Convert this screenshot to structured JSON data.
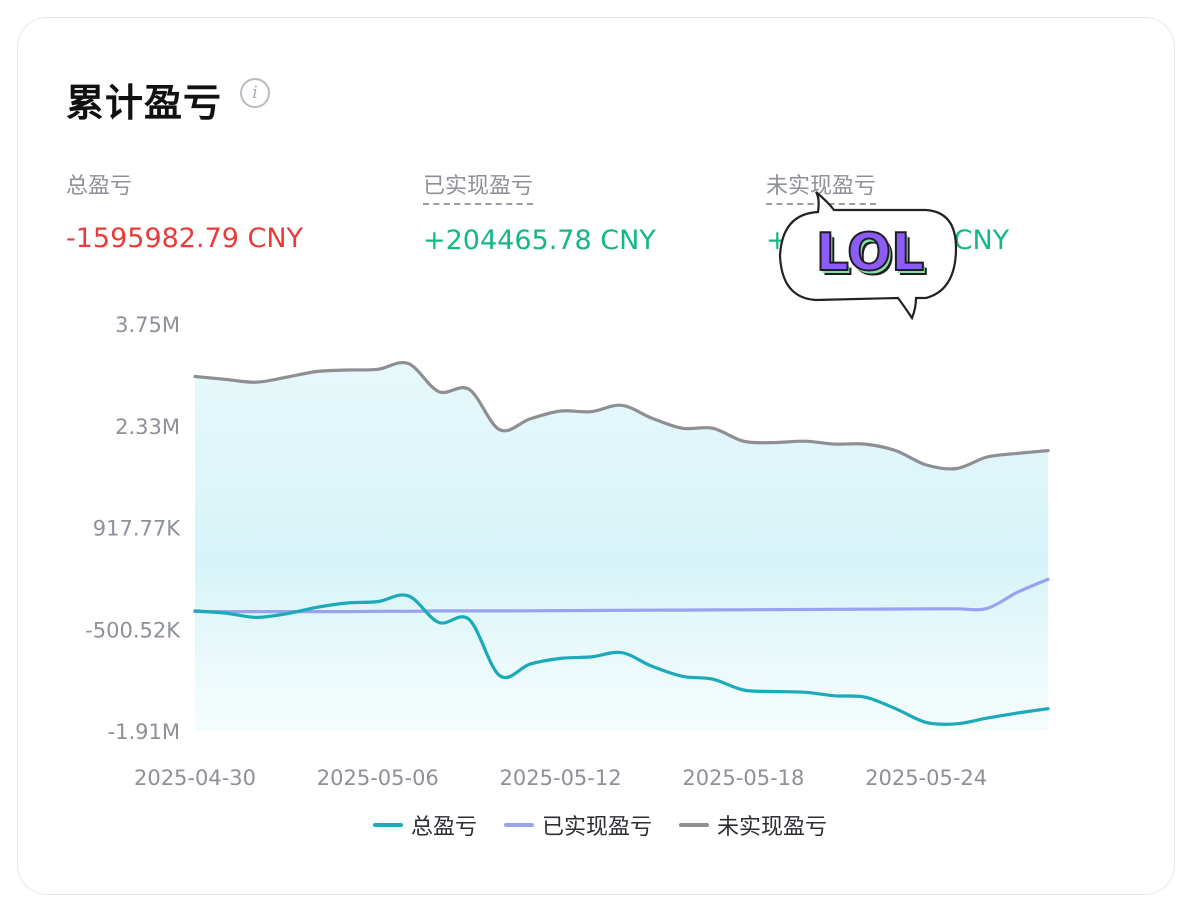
{
  "card": {
    "title": "累计盈亏",
    "info_icon": "info-icon"
  },
  "metrics": [
    {
      "label": "总盈亏",
      "value": "-1595982.79 CNY",
      "status": "negative"
    },
    {
      "label": "已实现盈亏",
      "value": "+204465.78 CNY",
      "status": "positive"
    },
    {
      "label": "未实现盈亏",
      "value": "+",
      "value_suffix": "CNY",
      "status": "positive"
    }
  ],
  "sticker": {
    "text": "LOL",
    "icon": "speech-bubble-lol-sticker"
  },
  "colors": {
    "total": "#1aaab9",
    "realized": "#9aa2f0",
    "unrealized": "#8e8e93",
    "negative": "#ea3b3a",
    "positive": "#12b886",
    "fill": "#cdf1f5"
  },
  "chart_data": {
    "type": "area",
    "x_tick_labels": [
      "2025-04-30",
      "2025-05-06",
      "2025-05-12",
      "2025-05-18",
      "2025-05-24"
    ],
    "y_tick_labels": [
      "3.75M",
      "2.33M",
      "917.77K",
      "-500.52K",
      "-1.91M"
    ],
    "y_tick_values": [
      3750000,
      2330000,
      917770,
      -500520,
      -1910000
    ],
    "ylim": [
      -1910000,
      3750000
    ],
    "x": [
      "2025-04-30",
      "2025-05-01",
      "2025-05-02",
      "2025-05-03",
      "2025-05-04",
      "2025-05-05",
      "2025-05-06",
      "2025-05-07",
      "2025-05-08",
      "2025-05-09",
      "2025-05-10",
      "2025-05-11",
      "2025-05-12",
      "2025-05-13",
      "2025-05-14",
      "2025-05-15",
      "2025-05-16",
      "2025-05-17",
      "2025-05-18",
      "2025-05-19",
      "2025-05-20",
      "2025-05-21",
      "2025-05-22",
      "2025-05-23",
      "2025-05-24",
      "2025-05-25",
      "2025-05-26",
      "2025-05-27",
      "2025-05-28"
    ],
    "series": [
      {
        "name": "总盈亏",
        "key": "total",
        "values": [
          -240000,
          -270000,
          -330000,
          -280000,
          -190000,
          -130000,
          -110000,
          -30000,
          -400000,
          -360000,
          -1140000,
          -980000,
          -900000,
          -880000,
          -820000,
          -1010000,
          -1150000,
          -1190000,
          -1340000,
          -1360000,
          -1370000,
          -1420000,
          -1440000,
          -1600000,
          -1790000,
          -1810000,
          -1730000,
          -1660000,
          -1600000
        ]
      },
      {
        "name": "已实现盈亏",
        "key": "realized",
        "values": [
          -250000,
          -250000,
          -250000,
          -250000,
          -250000,
          -250000,
          -245000,
          -245000,
          -240000,
          -240000,
          -240000,
          -238000,
          -236000,
          -234000,
          -232000,
          -230000,
          -228000,
          -226000,
          -224000,
          -222000,
          -220000,
          -218000,
          -216000,
          -214000,
          -212000,
          -210000,
          -205000,
          20000,
          200000
        ]
      },
      {
        "name": "未实现盈亏",
        "key": "unrealized",
        "values": [
          3020000,
          2980000,
          2940000,
          3010000,
          3090000,
          3110000,
          3120000,
          3200000,
          2810000,
          2840000,
          2280000,
          2430000,
          2540000,
          2530000,
          2620000,
          2440000,
          2300000,
          2300000,
          2120000,
          2100000,
          2120000,
          2080000,
          2080000,
          1990000,
          1790000,
          1740000,
          1900000,
          1950000,
          1990000
        ]
      }
    ],
    "grid": false,
    "legend": "bottom-center",
    "title": "",
    "xlabel": "",
    "ylabel": ""
  }
}
